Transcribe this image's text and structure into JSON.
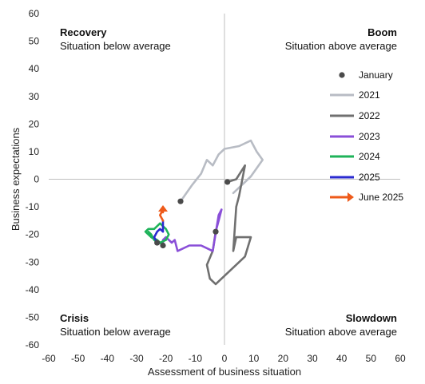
{
  "chart_data": {
    "type": "line",
    "xlabel": "Assessment of business situation",
    "ylabel": "Business expectations",
    "xlim": [
      -60,
      60
    ],
    "ylim": [
      -60,
      60
    ],
    "xticks": [
      -60,
      -50,
      -40,
      -30,
      -20,
      -10,
      0,
      10,
      20,
      30,
      40,
      50,
      60
    ],
    "yticks": [
      60,
      50,
      40,
      30,
      20,
      10,
      0,
      -10,
      -20,
      -30,
      -40,
      -50,
      -60
    ],
    "grid": false,
    "legend_position": "right",
    "quadrants": [
      {
        "title": "Recovery",
        "subtitle": "Situation below average",
        "position": "top-left"
      },
      {
        "title": "Boom",
        "subtitle": "Situation above average",
        "position": "top-right"
      },
      {
        "title": "Crisis",
        "subtitle": "Situation below average",
        "position": "bottom-left"
      },
      {
        "title": "Slowdown",
        "subtitle": "Situation above average",
        "position": "bottom-right"
      }
    ],
    "january_marker": {
      "label": "January",
      "color": "#4a4a4a"
    },
    "series": [
      {
        "name": "2021",
        "color": "#b8bcc4",
        "points": [
          [
            -15,
            -8
          ],
          [
            -11,
            -2
          ],
          [
            -8,
            2
          ],
          [
            -6,
            7
          ],
          [
            -4,
            5
          ],
          [
            -2,
            9
          ],
          [
            0,
            11
          ],
          [
            5,
            12
          ],
          [
            9,
            14
          ],
          [
            11,
            10
          ],
          [
            13,
            7
          ],
          [
            11,
            4
          ],
          [
            9,
            1
          ],
          [
            7,
            -1
          ],
          [
            5,
            -3
          ],
          [
            3,
            -5
          ]
        ]
      },
      {
        "name": "2022",
        "color": "#707070",
        "points": [
          [
            1,
            -1
          ],
          [
            4,
            0
          ],
          [
            7,
            5
          ],
          [
            5,
            -6
          ],
          [
            4,
            -10
          ],
          [
            3,
            -26
          ],
          [
            4,
            -21
          ],
          [
            9,
            -21
          ],
          [
            7,
            -28
          ],
          [
            -3,
            -38
          ],
          [
            -5,
            -36
          ],
          [
            -6,
            -31
          ],
          [
            -4,
            -26
          ],
          [
            -3,
            -19
          ]
        ]
      },
      {
        "name": "2023",
        "color": "#8a4fd8",
        "points": [
          [
            -3,
            -19
          ],
          [
            -2,
            -15
          ],
          [
            -1,
            -11
          ],
          [
            -2,
            -13
          ],
          [
            -4,
            -26
          ],
          [
            -8,
            -24
          ],
          [
            -12,
            -24
          ],
          [
            -16,
            -26
          ],
          [
            -17,
            -22
          ],
          [
            -18,
            -23
          ],
          [
            -20,
            -21
          ],
          [
            -21,
            -22
          ],
          [
            -21,
            -24
          ]
        ]
      },
      {
        "name": "2024",
        "color": "#1fb35a",
        "points": [
          [
            -21,
            -24
          ],
          [
            -22,
            -23
          ],
          [
            -25,
            -21
          ],
          [
            -27,
            -19
          ],
          [
            -26,
            -18
          ],
          [
            -24,
            -18
          ],
          [
            -22,
            -16
          ],
          [
            -20,
            -18
          ],
          [
            -19,
            -20
          ],
          [
            -20,
            -22
          ],
          [
            -22,
            -23
          ],
          [
            -23,
            -22
          ],
          [
            -25,
            -21
          ],
          [
            -26,
            -19
          ],
          [
            -25,
            -20
          ],
          [
            -24,
            -22
          ],
          [
            -23,
            -23
          ]
        ]
      },
      {
        "name": "2025",
        "color": "#2a2ad0",
        "points": [
          [
            -23,
            -23
          ],
          [
            -24,
            -21
          ],
          [
            -23,
            -19
          ],
          [
            -22,
            -18
          ],
          [
            -21,
            -19
          ],
          [
            -21,
            -15
          ]
        ]
      },
      {
        "name": "June 2025",
        "color": "#ee5a1a",
        "arrow": true,
        "points": [
          [
            -21,
            -15
          ],
          [
            -22,
            -13
          ],
          [
            -21,
            -11
          ],
          [
            -21,
            -12
          ]
        ]
      }
    ],
    "january_points": [
      [
        -15,
        -8
      ],
      [
        1,
        -1
      ],
      [
        -3,
        -19
      ],
      [
        -21,
        -24
      ],
      [
        -23,
        -23
      ]
    ],
    "legend": [
      {
        "label": "January",
        "kind": "dot",
        "color": "#4a4a4a"
      },
      {
        "label": "2021",
        "kind": "line",
        "color": "#b8bcc4"
      },
      {
        "label": "2022",
        "kind": "line",
        "color": "#707070"
      },
      {
        "label": "2023",
        "kind": "line",
        "color": "#8a4fd8"
      },
      {
        "label": "2024",
        "kind": "line",
        "color": "#1fb35a"
      },
      {
        "label": "2025",
        "kind": "line",
        "color": "#2a2ad0"
      },
      {
        "label": "June 2025",
        "kind": "arrow",
        "color": "#ee5a1a"
      }
    ]
  }
}
